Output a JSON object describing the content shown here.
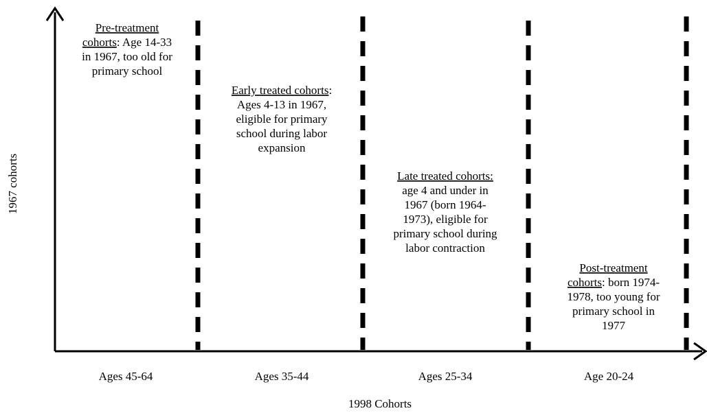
{
  "y_axis": {
    "label": "1967 cohorts"
  },
  "x_axis": {
    "label": "1998 Cohorts"
  },
  "columns": [
    {
      "age": "Ages 45-64",
      "lines": [
        [
          {
            "text": "Pre-treatment",
            "underline": true
          }
        ],
        [
          {
            "text": "cohorts",
            "underline": true
          },
          ": Age 14-33"
        ],
        [
          "in 1967, too old for"
        ],
        [
          "primary school"
        ]
      ]
    },
    {
      "age": "Ages 35-44",
      "lines": [
        [
          {
            "text": "Early treated cohorts",
            "underline": true
          },
          ":"
        ],
        [
          "Ages 4-13 in 1967,"
        ],
        [
          "eligible for primary"
        ],
        [
          "school during labor"
        ],
        [
          "expansion"
        ]
      ]
    },
    {
      "age": "Ages 25-34",
      "lines": [
        [
          {
            "text": "Late treated cohorts:",
            "underline": true
          }
        ],
        [
          "age 4 and under in"
        ],
        [
          "1967 (born 1964-"
        ],
        [
          "1973), eligible for"
        ],
        [
          "primary school during"
        ],
        [
          "labor contraction"
        ]
      ]
    },
    {
      "age": "Age 20-24",
      "lines": [
        [
          {
            "text": "Post-treatment",
            "underline": true
          }
        ],
        [
          {
            "text": "cohorts",
            "underline": true
          },
          ": born 1974-"
        ],
        [
          "1978, too young for"
        ],
        [
          "primary school in"
        ],
        [
          "1977"
        ]
      ]
    }
  ]
}
